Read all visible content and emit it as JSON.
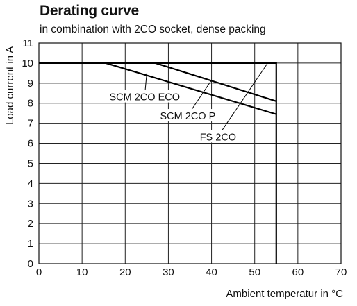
{
  "chart_data": {
    "type": "line",
    "title": "Derating curve",
    "subtitle": "in combination with 2CO socket, dense packing",
    "xlabel": "Ambient temperatur in °C",
    "ylabel": "Load  current in A",
    "xlim": [
      0,
      70
    ],
    "ylim": [
      0,
      11
    ],
    "xticks": [
      0,
      10,
      20,
      30,
      40,
      50,
      60,
      70
    ],
    "yticks": [
      0,
      1,
      2,
      3,
      4,
      5,
      6,
      7,
      8,
      9,
      10,
      11
    ],
    "grid": true,
    "series": [
      {
        "name": "SCM 2CO ECO",
        "x": [
          0,
          15.5,
          55
        ],
        "y": [
          10,
          10,
          7.45
        ]
      },
      {
        "name": "SCM 2CO P",
        "x": [
          0,
          27,
          55
        ],
        "y": [
          10,
          10,
          8.1
        ]
      },
      {
        "name": "FS 2CO",
        "x": [
          0,
          55,
          55
        ],
        "y": [
          10,
          10,
          0
        ]
      }
    ],
    "annotations": [
      {
        "text": "SCM 2CO ECO",
        "label_x": 24.5,
        "label_y": 8.35,
        "point_x": 25,
        "point_y": 9.5
      },
      {
        "text": "SCM 2CO P",
        "label_x": 34.5,
        "label_y": 7.4,
        "point_x": 40,
        "point_y": 9.15
      },
      {
        "text": "FS 2CO",
        "label_x": 41.5,
        "label_y": 6.35,
        "point_x": 53,
        "point_y": 10
      }
    ]
  }
}
